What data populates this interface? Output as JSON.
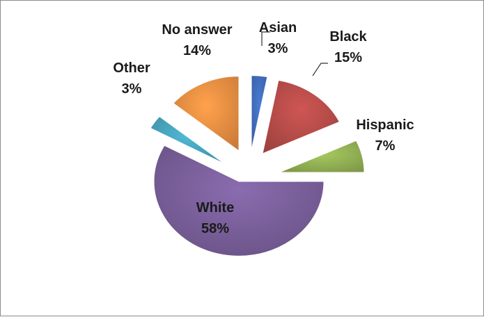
{
  "chart_data": {
    "type": "pie",
    "title": "",
    "legend": "none",
    "categories": [
      "Asian",
      "Black",
      "Hispanic",
      "White",
      "Other",
      "No answer"
    ],
    "values": [
      3,
      15,
      7,
      58,
      3,
      14
    ],
    "value_labels": [
      "3%",
      "15%",
      "7%",
      "58%",
      "3%",
      "14%"
    ],
    "colors": [
      "#4472C4",
      "#C0504D",
      "#9BBB59",
      "#8064A2",
      "#4BACC6",
      "#F79646"
    ],
    "exploded": true,
    "data_labels": "category and percent"
  }
}
